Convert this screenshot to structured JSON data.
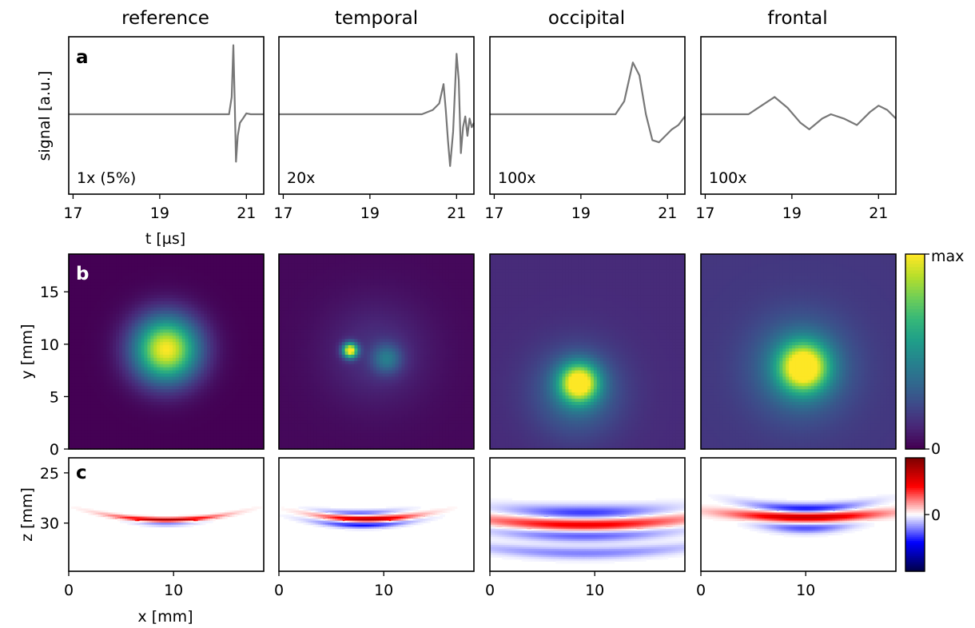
{
  "figure": {
    "columns": [
      "reference",
      "temporal",
      "occipital",
      "frontal"
    ],
    "panel_letters": [
      "a",
      "b",
      "c"
    ],
    "colorbar_b": {
      "tick_labels": [
        "max",
        "0"
      ]
    },
    "colorbar_c": {
      "tick_labels": [
        "0"
      ]
    }
  },
  "chart_data": [
    {
      "panel": "a",
      "type": "line",
      "ylabel": "signal [a.u.]",
      "xlabel": "t [µs]",
      "xlim": [
        16.9,
        21.4
      ],
      "xticks": [
        17,
        19,
        21
      ],
      "yticks": [],
      "grid": false,
      "subplots": [
        {
          "column": "reference",
          "gain": "1x (5%)",
          "color": "#777777",
          "series": {
            "x": [
              16.9,
              20.6,
              20.66,
              20.7,
              20.73,
              20.76,
              20.8,
              20.85,
              20.92,
              21.0,
              21.1,
              21.4
            ],
            "y": [
              0.0,
              0.0,
              0.4,
              1.6,
              0.3,
              -1.1,
              -0.5,
              -0.2,
              -0.1,
              0.02,
              0.0,
              0.0
            ]
          }
        },
        {
          "column": "temporal",
          "gain": "20x",
          "color": "#777777",
          "series": {
            "x": [
              16.9,
              20.2,
              20.45,
              20.6,
              20.7,
              20.75,
              20.8,
              20.85,
              20.92,
              21.0,
              21.05,
              21.1,
              21.15,
              21.2,
              21.25,
              21.3,
              21.35,
              21.4
            ],
            "y": [
              0.0,
              0.0,
              0.1,
              0.25,
              0.7,
              0.1,
              -0.6,
              -1.2,
              -0.4,
              1.4,
              0.8,
              -0.9,
              -0.3,
              -0.05,
              -0.5,
              -0.1,
              -0.3,
              -0.2
            ]
          }
        },
        {
          "column": "occipital",
          "gain": "100x",
          "color": "#777777",
          "series": {
            "x": [
              16.9,
              19.5,
              19.8,
              20.0,
              20.2,
              20.35,
              20.5,
              20.65,
              20.8,
              20.95,
              21.1,
              21.25,
              21.4
            ],
            "y": [
              0.0,
              0.0,
              0.0,
              0.3,
              1.2,
              0.9,
              0.0,
              -0.6,
              -0.65,
              -0.5,
              -0.35,
              -0.25,
              -0.05
            ]
          }
        },
        {
          "column": "frontal",
          "gain": "100x",
          "color": "#777777",
          "series": {
            "x": [
              16.9,
              18.0,
              18.3,
              18.6,
              18.9,
              19.2,
              19.4,
              19.7,
              19.9,
              20.2,
              20.5,
              20.8,
              21.0,
              21.2,
              21.4
            ],
            "y": [
              0.0,
              0.0,
              0.2,
              0.4,
              0.15,
              -0.2,
              -0.35,
              -0.1,
              0.0,
              -0.1,
              -0.25,
              0.05,
              0.2,
              0.1,
              -0.1
            ]
          }
        }
      ]
    },
    {
      "panel": "b",
      "type": "heatmap",
      "ylabel": "y [mm]",
      "xlim": [
        0,
        18.6
      ],
      "ylim": [
        0,
        18.6
      ],
      "yticks": [
        0,
        5,
        10,
        15
      ],
      "colormap": "viridis",
      "colorbar_range": [
        "0",
        "max"
      ],
      "subplots": [
        {
          "column": "reference",
          "background": 0.0,
          "blobs": [
            {
              "x": 9.3,
              "y": 9.5,
              "sigma": 2.2,
              "amp": 1.0
            }
          ]
        },
        {
          "column": "temporal",
          "background": 0.02,
          "blobs": [
            {
              "x": 9.3,
              "y": 9.2,
              "sigma": 3.5,
              "amp": 0.12
            },
            {
              "x": 6.8,
              "y": 9.4,
              "sigma": 0.5,
              "amp": 1.0
            },
            {
              "x": 10.3,
              "y": 8.6,
              "sigma": 1.0,
              "amp": 0.3
            }
          ]
        },
        {
          "column": "occipital",
          "background": 0.12,
          "blobs": [
            {
              "x": 8.5,
              "y": 6.3,
              "sigma": 1.3,
              "amp": 0.85
            },
            {
              "x": 8.3,
              "y": 5.5,
              "sigma": 3.0,
              "amp": 0.25
            }
          ]
        },
        {
          "column": "frontal",
          "background": 0.16,
          "blobs": [
            {
              "x": 9.8,
              "y": 7.8,
              "sigma": 1.6,
              "amp": 0.8
            },
            {
              "x": 9.5,
              "y": 7.8,
              "sigma": 3.2,
              "amp": 0.3
            }
          ]
        }
      ]
    },
    {
      "panel": "c",
      "type": "heatmap",
      "ylabel": "z [mm]",
      "xlabel": "x [mm]",
      "xlim": [
        0,
        18.6
      ],
      "ylim": [
        34.8,
        23.5
      ],
      "yticks": [
        25,
        30
      ],
      "xticks": [
        0,
        10
      ],
      "colormap": "seismic",
      "colorbar_range": [
        "negative",
        "positive"
      ],
      "subplots": [
        {
          "column": "reference",
          "bands": [
            {
              "x": 9.3,
              "z": 29.7,
              "half_width": 3.2,
              "thickness": 0.15,
              "amp": 0.9
            },
            {
              "x": 9.3,
              "z": 30.0,
              "half_width": 2.0,
              "thickness": 0.18,
              "amp": -0.3
            }
          ]
        },
        {
          "column": "temporal",
          "bands": [
            {
              "x": 8.5,
              "z": 29.6,
              "half_width": 3.0,
              "thickness": 0.2,
              "amp": 0.8
            },
            {
              "x": 8.0,
              "z": 30.2,
              "half_width": 3.0,
              "thickness": 0.2,
              "amp": -0.5
            },
            {
              "x": 7.5,
              "z": 29.0,
              "half_width": 2.5,
              "thickness": 0.2,
              "amp": -0.3
            }
          ]
        },
        {
          "column": "occipital",
          "bands": [
            {
              "x": 9.0,
              "z": 29.0,
              "half_width": 5.0,
              "thickness": 0.5,
              "amp": -0.4
            },
            {
              "x": 9.0,
              "z": 30.2,
              "half_width": 7.0,
              "thickness": 0.45,
              "amp": 0.6
            },
            {
              "x": 9.0,
              "z": 31.2,
              "half_width": 6.0,
              "thickness": 0.45,
              "amp": -0.35
            },
            {
              "x": 9.0,
              "z": 33.0,
              "half_width": 8.0,
              "thickness": 0.4,
              "amp": -0.25
            }
          ]
        },
        {
          "column": "frontal",
          "bands": [
            {
              "x": 10.0,
              "z": 28.6,
              "half_width": 3.5,
              "thickness": 0.35,
              "amp": -0.5
            },
            {
              "x": 10.0,
              "z": 29.4,
              "half_width": 5.0,
              "thickness": 0.35,
              "amp": 0.75
            },
            {
              "x": 10.0,
              "z": 30.5,
              "half_width": 3.0,
              "thickness": 0.35,
              "amp": -0.35
            }
          ]
        }
      ]
    }
  ]
}
